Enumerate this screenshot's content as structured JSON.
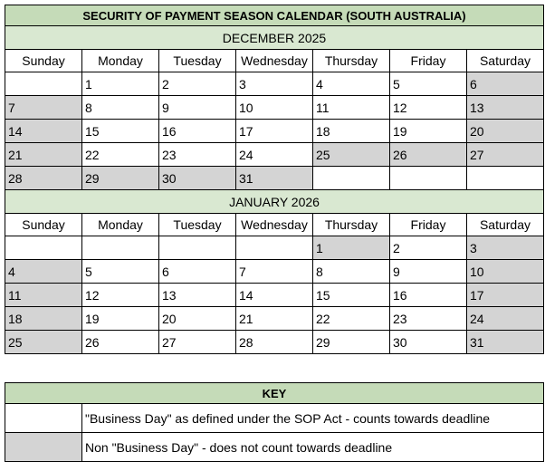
{
  "title": "SECURITY OF PAYMENT SEASON CALENDAR (SOUTH AUSTRALIA)",
  "months": [
    {
      "name": "DECEMBER 2025",
      "weekdays": [
        "Sunday",
        "Monday",
        "Tuesday",
        "Wednesday",
        "Thursday",
        "Friday",
        "Saturday"
      ],
      "weeks": [
        [
          null,
          {
            "day": 1,
            "shaded": false
          },
          {
            "day": 2,
            "shaded": false
          },
          {
            "day": 3,
            "shaded": false
          },
          {
            "day": 4,
            "shaded": false
          },
          {
            "day": 5,
            "shaded": false
          },
          {
            "day": 6,
            "shaded": true
          }
        ],
        [
          {
            "day": 7,
            "shaded": true
          },
          {
            "day": 8,
            "shaded": false
          },
          {
            "day": 9,
            "shaded": false
          },
          {
            "day": 10,
            "shaded": false
          },
          {
            "day": 11,
            "shaded": false
          },
          {
            "day": 12,
            "shaded": false
          },
          {
            "day": 13,
            "shaded": true
          }
        ],
        [
          {
            "day": 14,
            "shaded": true
          },
          {
            "day": 15,
            "shaded": false
          },
          {
            "day": 16,
            "shaded": false
          },
          {
            "day": 17,
            "shaded": false
          },
          {
            "day": 18,
            "shaded": false
          },
          {
            "day": 19,
            "shaded": false
          },
          {
            "day": 20,
            "shaded": true
          }
        ],
        [
          {
            "day": 21,
            "shaded": true
          },
          {
            "day": 22,
            "shaded": false
          },
          {
            "day": 23,
            "shaded": false
          },
          {
            "day": 24,
            "shaded": false
          },
          {
            "day": 25,
            "shaded": true
          },
          {
            "day": 26,
            "shaded": true
          },
          {
            "day": 27,
            "shaded": true
          }
        ],
        [
          {
            "day": 28,
            "shaded": true
          },
          {
            "day": 29,
            "shaded": true
          },
          {
            "day": 30,
            "shaded": true
          },
          {
            "day": 31,
            "shaded": true
          },
          null,
          null,
          null
        ]
      ]
    },
    {
      "name": "JANUARY 2026",
      "weekdays": [
        "Sunday",
        "Monday",
        "Tuesday",
        "Wednesday",
        "Thursday",
        "Friday",
        "Saturday"
      ],
      "weeks": [
        [
          null,
          null,
          null,
          null,
          {
            "day": 1,
            "shaded": true
          },
          {
            "day": 2,
            "shaded": false
          },
          {
            "day": 3,
            "shaded": true
          }
        ],
        [
          {
            "day": 4,
            "shaded": true
          },
          {
            "day": 5,
            "shaded": false
          },
          {
            "day": 6,
            "shaded": false
          },
          {
            "day": 7,
            "shaded": false
          },
          {
            "day": 8,
            "shaded": false
          },
          {
            "day": 9,
            "shaded": false
          },
          {
            "day": 10,
            "shaded": true
          }
        ],
        [
          {
            "day": 11,
            "shaded": true
          },
          {
            "day": 12,
            "shaded": false
          },
          {
            "day": 13,
            "shaded": false
          },
          {
            "day": 14,
            "shaded": false
          },
          {
            "day": 15,
            "shaded": false
          },
          {
            "day": 16,
            "shaded": false
          },
          {
            "day": 17,
            "shaded": true
          }
        ],
        [
          {
            "day": 18,
            "shaded": true
          },
          {
            "day": 19,
            "shaded": false
          },
          {
            "day": 20,
            "shaded": false
          },
          {
            "day": 21,
            "shaded": false
          },
          {
            "day": 22,
            "shaded": false
          },
          {
            "day": 23,
            "shaded": false
          },
          {
            "day": 24,
            "shaded": true
          }
        ],
        [
          {
            "day": 25,
            "shaded": true
          },
          {
            "day": 26,
            "shaded": false
          },
          {
            "day": 27,
            "shaded": false
          },
          {
            "day": 28,
            "shaded": false
          },
          {
            "day": 29,
            "shaded": false
          },
          {
            "day": 30,
            "shaded": false
          },
          {
            "day": 31,
            "shaded": true
          }
        ]
      ]
    }
  ],
  "key": {
    "title": "KEY",
    "rows": [
      {
        "text": "\"Business Day\" as defined under the SOP Act - counts towards deadline",
        "shaded": false
      },
      {
        "text": "Non \"Business Day\" - does not count towards deadline",
        "shaded": true
      }
    ]
  }
}
